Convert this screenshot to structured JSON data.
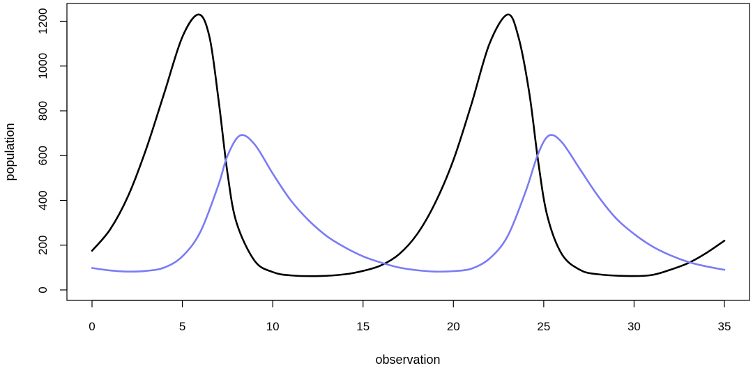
{
  "chart_data": {
    "type": "line",
    "xlabel": "observation",
    "ylabel": "population",
    "xlim": [
      0,
      35
    ],
    "ylim": [
      0,
      1250
    ],
    "xticks": [
      0,
      5,
      10,
      15,
      20,
      25,
      30,
      35
    ],
    "yticks": [
      0,
      200,
      400,
      600,
      800,
      1000,
      1200
    ],
    "grid": false,
    "legend": "none",
    "series": [
      {
        "color": "#000000",
        "points": [
          [
            0,
            175
          ],
          [
            1,
            270
          ],
          [
            2,
            420
          ],
          [
            3,
            630
          ],
          [
            4,
            880
          ],
          [
            5,
            1130
          ],
          [
            5.9,
            1230
          ],
          [
            6.5,
            1130
          ],
          [
            7,
            850
          ],
          [
            7.5,
            520
          ],
          [
            8,
            300
          ],
          [
            9,
            130
          ],
          [
            10,
            80
          ],
          [
            11,
            65
          ],
          [
            12.6,
            62
          ],
          [
            14,
            70
          ],
          [
            15,
            85
          ],
          [
            16,
            110
          ],
          [
            17,
            160
          ],
          [
            18,
            250
          ],
          [
            19,
            390
          ],
          [
            20,
            580
          ],
          [
            21,
            830
          ],
          [
            22,
            1100
          ],
          [
            23,
            1230
          ],
          [
            23.6,
            1130
          ],
          [
            24.2,
            880
          ],
          [
            24.7,
            570
          ],
          [
            25.2,
            330
          ],
          [
            26,
            160
          ],
          [
            27,
            90
          ],
          [
            28,
            70
          ],
          [
            29.8,
            62
          ],
          [
            31,
            67
          ],
          [
            32,
            90
          ],
          [
            33,
            120
          ],
          [
            34,
            165
          ],
          [
            35,
            220
          ]
        ]
      },
      {
        "color": "#7b7bf5",
        "points": [
          [
            0,
            98
          ],
          [
            1,
            87
          ],
          [
            2,
            82
          ],
          [
            3,
            85
          ],
          [
            4,
            100
          ],
          [
            5,
            150
          ],
          [
            6,
            260
          ],
          [
            7,
            470
          ],
          [
            7.5,
            600
          ],
          [
            8.2,
            690
          ],
          [
            9,
            650
          ],
          [
            10,
            520
          ],
          [
            11,
            400
          ],
          [
            12,
            310
          ],
          [
            13,
            240
          ],
          [
            14,
            190
          ],
          [
            15,
            150
          ],
          [
            16,
            122
          ],
          [
            17,
            100
          ],
          [
            18,
            88
          ],
          [
            19,
            82
          ],
          [
            20,
            84
          ],
          [
            21,
            95
          ],
          [
            22,
            140
          ],
          [
            23,
            240
          ],
          [
            24,
            440
          ],
          [
            24.7,
            610
          ],
          [
            25.3,
            690
          ],
          [
            26,
            660
          ],
          [
            27,
            540
          ],
          [
            28,
            420
          ],
          [
            29,
            320
          ],
          [
            30,
            250
          ],
          [
            31,
            195
          ],
          [
            32,
            155
          ],
          [
            33,
            125
          ],
          [
            34,
            105
          ],
          [
            35,
            90
          ]
        ]
      }
    ]
  }
}
